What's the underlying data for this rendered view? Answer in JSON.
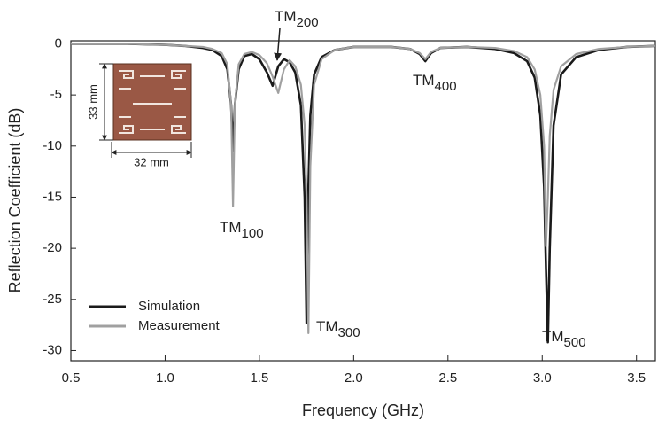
{
  "chart_data": {
    "type": "line",
    "x_label": "Frequency (GHz)",
    "y_label": "Reflection Coefficient (dB)",
    "xlim": [
      0.5,
      3.6
    ],
    "ylim": [
      -31,
      0.3
    ],
    "xticks": [
      0.5,
      {
        "value": 1,
        "label": "1.0"
      },
      1.5,
      {
        "value": 2,
        "label": "2.0"
      },
      2.5,
      {
        "value": 3,
        "label": "3.0"
      },
      3.5
    ],
    "yticks": [
      0,
      -5,
      -10,
      -15,
      -20,
      -25,
      -30
    ],
    "legend": "lower left",
    "x": [
      0.5,
      0.8,
      1.0,
      1.1,
      1.2,
      1.25,
      1.3,
      1.33,
      1.35,
      1.36,
      1.37,
      1.39,
      1.42,
      1.46,
      1.5,
      1.54,
      1.57,
      1.6,
      1.63,
      1.66,
      1.69,
      1.72,
      1.74,
      1.75,
      1.76,
      1.77,
      1.79,
      1.83,
      1.9,
      2.0,
      2.1,
      2.2,
      2.3,
      2.35,
      2.38,
      2.41,
      2.46,
      2.6,
      2.75,
      2.85,
      2.92,
      2.96,
      2.99,
      3.01,
      3.02,
      3.03,
      3.04,
      3.06,
      3.1,
      3.18,
      3.3,
      3.45,
      3.6
    ],
    "series": [
      {
        "name": "Simulation",
        "color": "#1a1a1a",
        "values": [
          0,
          0,
          -0.1,
          -0.2,
          -0.4,
          -0.6,
          -1.2,
          -2.5,
          -6,
          -10.5,
          -6,
          -2.5,
          -1.2,
          -1.0,
          -1.5,
          -2.8,
          -4.1,
          -2.2,
          -1.5,
          -1.8,
          -2.8,
          -6,
          -15,
          -27.3,
          -14,
          -7,
          -3,
          -1.3,
          -0.6,
          -0.3,
          -0.3,
          -0.3,
          -0.5,
          -1.0,
          -1.7,
          -0.9,
          -0.4,
          -0.3,
          -0.5,
          -0.9,
          -1.7,
          -3.3,
          -7,
          -14,
          -22,
          -29.2,
          -20,
          -8,
          -3,
          -1.3,
          -0.6,
          -0.3,
          -0.2
        ]
      },
      {
        "name": "Measurement",
        "color": "#a0a0a0",
        "values": [
          0,
          0,
          -0.1,
          -0.2,
          -0.3,
          -0.5,
          -0.9,
          -2,
          -6,
          -15.9,
          -6,
          -2,
          -1.0,
          -0.8,
          -1.1,
          -1.9,
          -3.2,
          -4.8,
          -2.5,
          -1.6,
          -2.2,
          -4,
          -8,
          -15,
          -28.3,
          -12,
          -4,
          -1.5,
          -0.6,
          -0.3,
          -0.3,
          -0.3,
          -0.5,
          -0.9,
          -1.5,
          -0.8,
          -0.4,
          -0.3,
          -0.4,
          -0.7,
          -1.3,
          -2.5,
          -5,
          -10,
          -19.8,
          -15,
          -9,
          -4.5,
          -2.2,
          -1.0,
          -0.5,
          -0.3,
          -0.2
        ]
      }
    ],
    "annotations": [
      {
        "text": "TM",
        "sub": "100"
      },
      {
        "text": "TM",
        "sub": "200"
      },
      {
        "text": "TM",
        "sub": "300"
      },
      {
        "text": "TM",
        "sub": "400"
      },
      {
        "text": "TM",
        "sub": "500"
      }
    ],
    "inset": {
      "height_label": "33 mm",
      "width_label": "32 mm"
    }
  }
}
